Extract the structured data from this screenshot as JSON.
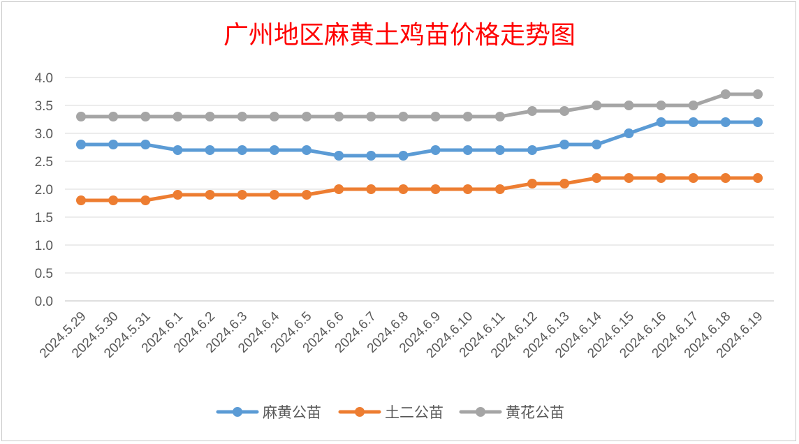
{
  "chart_data": {
    "type": "line",
    "title": "广州地区麻黄土鸡苗价格走势图",
    "categories": [
      "2024.5.29",
      "2024.5.30",
      "2024.5.31",
      "2024.6.1",
      "2024.6.2",
      "2024.6.3",
      "2024.6.4",
      "2024.6.5",
      "2024.6.6",
      "2024.6.7",
      "2024.6.8",
      "2024.6.9",
      "2024.6.10",
      "2024.6.11",
      "2024.6.12",
      "2024.6.13",
      "2024.6.14",
      "2024.6.15",
      "2024.6.16",
      "2024.6.17",
      "2024.6.18",
      "2024.6.19"
    ],
    "series": [
      {
        "name": "麻黄公苗",
        "color": "#5b9bd5",
        "values": [
          2.8,
          2.8,
          2.8,
          2.7,
          2.7,
          2.7,
          2.7,
          2.7,
          2.6,
          2.6,
          2.6,
          2.7,
          2.7,
          2.7,
          2.7,
          2.8,
          2.8,
          3.0,
          3.2,
          3.2,
          3.2,
          3.2
        ]
      },
      {
        "name": "土二公苗",
        "color": "#ed7d31",
        "values": [
          1.8,
          1.8,
          1.8,
          1.9,
          1.9,
          1.9,
          1.9,
          1.9,
          2.0,
          2.0,
          2.0,
          2.0,
          2.0,
          2.0,
          2.1,
          2.1,
          2.2,
          2.2,
          2.2,
          2.2,
          2.2,
          2.2
        ]
      },
      {
        "name": "黄花公苗",
        "color": "#a5a5a5",
        "values": [
          3.3,
          3.3,
          3.3,
          3.3,
          3.3,
          3.3,
          3.3,
          3.3,
          3.3,
          3.3,
          3.3,
          3.3,
          3.3,
          3.3,
          3.4,
          3.4,
          3.5,
          3.5,
          3.5,
          3.5,
          3.7,
          3.7
        ]
      }
    ],
    "yticks": [
      "0.0",
      "0.5",
      "1.0",
      "1.5",
      "2.0",
      "2.5",
      "3.0",
      "3.5",
      "4.0"
    ],
    "ylim": [
      0,
      4
    ],
    "grid": true,
    "legend_position": "bottom",
    "title_color": "#ff0000"
  }
}
